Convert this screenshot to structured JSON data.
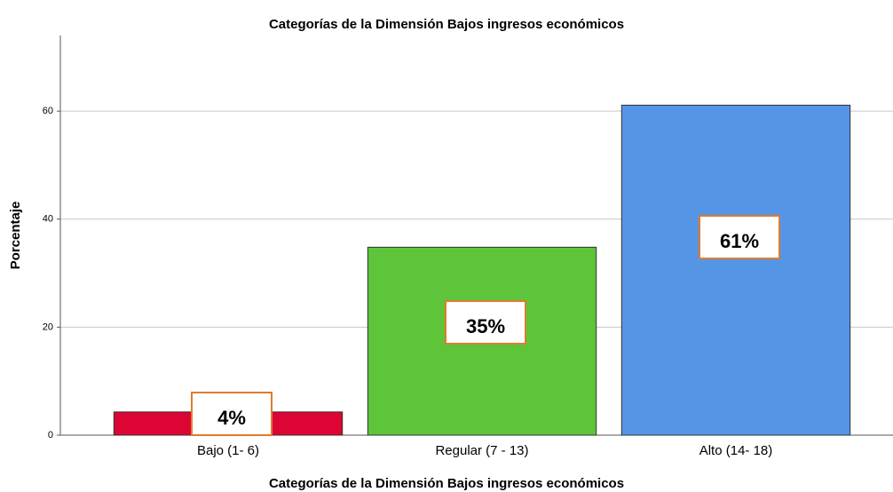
{
  "chart_data": {
    "type": "bar",
    "title": "Categorías de la Dimensión Bajos ingresos económicos",
    "x_label": "Categorías de la Dimensión Bajos ingresos económicos",
    "y_label": "Porcentaje",
    "categories": [
      "Bajo (1- 6)",
      "Regular (7 - 13)",
      "Alto (14- 18)"
    ],
    "values": [
      4.3,
      34.8,
      61.1
    ],
    "value_labels": [
      "4%",
      "35%",
      "61%"
    ],
    "colors": [
      "#dc0533",
      "#5ec43a",
      "#5595e6"
    ],
    "ylim": [
      0,
      74
    ],
    "yticks": [
      0,
      20,
      40,
      60
    ],
    "grid": true
  }
}
